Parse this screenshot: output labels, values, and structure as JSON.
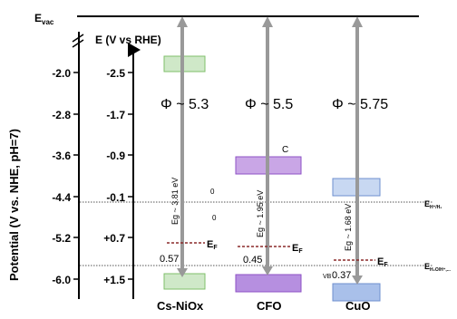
{
  "diagram": {
    "vacuum_label": "E",
    "vacuum_sub": "vac",
    "ylabel": "Potential (V vs. NHE, pH=7)",
    "rhe_axis_label": "E (V vs RHE)",
    "nhe_ticks": [
      "-2.0",
      "-2.8",
      "-3.6",
      "-4.4",
      "-5.2",
      "-6.0"
    ],
    "rhe_ticks": [
      "-2.5",
      "-1.7",
      "-0.9",
      "-0.1",
      "+0.7",
      "+1.5"
    ],
    "work_functions": [
      "Φ ~ 5.3",
      "Φ ~ 5.5",
      "Φ ~ 5.75"
    ],
    "materials": [
      {
        "name": "Cs-NiOx",
        "eg": "Eg ~ 3.81 eV",
        "ef_offset": "0.57",
        "color": "#cfe8c8",
        "border": "#7fbf6a"
      },
      {
        "name": "CFO",
        "eg": "Eg ~ 1.95 eV",
        "ef_offset": "0.45",
        "color": "#c9a6e6",
        "border": "#8e52c6"
      },
      {
        "name": "CuO",
        "eg": "Eg ~ 1.68 eV",
        "ef_offset": "0.37",
        "color": "#c8d8f2",
        "border": "#6e8fcf"
      }
    ],
    "ef_label": "E",
    "ef_sub": "F",
    "redox": [
      {
        "label": "E",
        "sub": "H⁺/H₂"
      },
      {
        "label": "E",
        "sub": "H₂O/H⁺,..."
      }
    ],
    "artifacts": [
      "C",
      "0",
      "0",
      "VB"
    ]
  }
}
